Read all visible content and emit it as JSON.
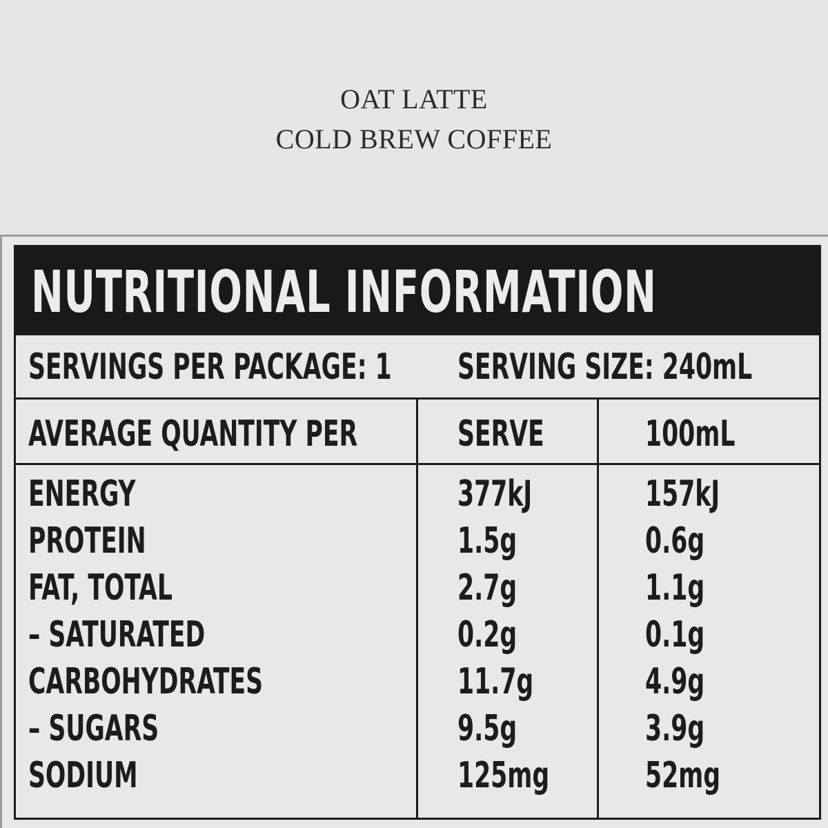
{
  "product": {
    "line1": "OAT LATTE",
    "line2": "COLD BREW COFFEE"
  },
  "panel": {
    "title": "NUTRITIONAL INFORMATION",
    "servings_per_package": "SERVINGS PER PACKAGE: 1",
    "serving_size": "SERVING SIZE: 240mL",
    "columns": {
      "name": "AVERAGE QUANTITY PER",
      "serve": "SERVE",
      "per100": "100mL"
    },
    "rows": [
      {
        "name": "ENERGY",
        "serve": "377kJ",
        "per100": "157kJ"
      },
      {
        "name": "PROTEIN",
        "serve": "1.5g",
        "per100": "0.6g"
      },
      {
        "name": "FAT, TOTAL",
        "serve": "2.7g",
        "per100": "1.1g"
      },
      {
        "name": "– SATURATED",
        "serve": "0.2g",
        "per100": "0.1g"
      },
      {
        "name": "CARBOHYDRATES",
        "serve": "11.7g",
        "per100": "4.9g"
      },
      {
        "name": "– SUGARS",
        "serve": "9.5g",
        "per100": "3.9g"
      },
      {
        "name": "SODIUM",
        "serve": "125mg",
        "per100": "52mg"
      }
    ]
  }
}
